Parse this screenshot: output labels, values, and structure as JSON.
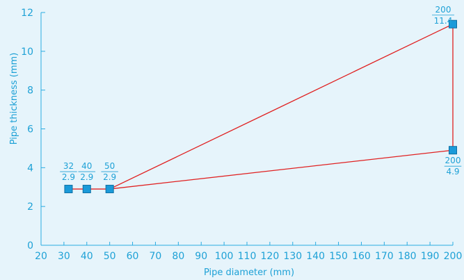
{
  "colors": {
    "background": "#e6f4fb",
    "axis": "#29abe2",
    "text": "#1ea1d6",
    "line": "#e02020",
    "marker_fill": "#1a9ad9",
    "marker_stroke": "#0e6fa3"
  },
  "chart_data": {
    "type": "line",
    "title": "",
    "xlabel": "Pipe diameter (mm)",
    "ylabel": "Pipe thickness (mm)",
    "xlim": [
      20,
      200
    ],
    "ylim": [
      0,
      12
    ],
    "xticks": [
      20,
      30,
      40,
      50,
      60,
      70,
      80,
      90,
      100,
      110,
      120,
      130,
      140,
      150,
      160,
      170,
      180,
      190,
      200
    ],
    "yticks": [
      0,
      2,
      4,
      6,
      8,
      10,
      12
    ],
    "grid": false,
    "legend": "none",
    "points": [
      {
        "x": 32,
        "y": 2.9,
        "label_top": "32",
        "label_bottom": "2.9",
        "label_position": "above"
      },
      {
        "x": 40,
        "y": 2.9,
        "label_top": "40",
        "label_bottom": "2.9",
        "label_position": "above"
      },
      {
        "x": 50,
        "y": 2.9,
        "label_top": "50",
        "label_bottom": "2.9",
        "label_position": "above"
      },
      {
        "x": 200,
        "y": 11.4,
        "label_top": "200",
        "label_bottom": "11.4",
        "label_position": "left"
      },
      {
        "x": 200,
        "y": 4.9,
        "label_top": "200",
        "label_bottom": "4.9",
        "label_position": "below"
      }
    ],
    "segments": [
      [
        {
          "x": 32,
          "y": 2.9
        },
        {
          "x": 50,
          "y": 2.9
        }
      ],
      [
        {
          "x": 50,
          "y": 2.9
        },
        {
          "x": 200,
          "y": 11.4
        }
      ],
      [
        {
          "x": 50,
          "y": 2.9
        },
        {
          "x": 200,
          "y": 4.9
        }
      ],
      [
        {
          "x": 200,
          "y": 11.4
        },
        {
          "x": 200,
          "y": 4.9
        }
      ]
    ]
  }
}
